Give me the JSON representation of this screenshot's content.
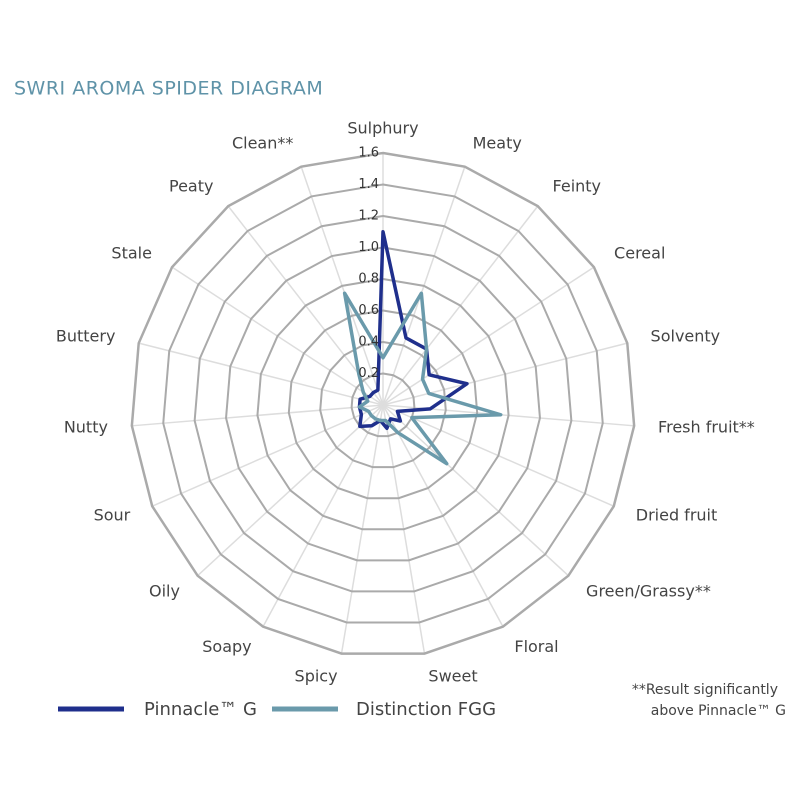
{
  "chart_data": {
    "type": "radar",
    "title": "SWRI AROMA SPIDER DIAGRAM",
    "categories": [
      "Sulphury",
      "Meaty",
      "Feinty",
      "Cereal",
      "Solventy",
      "Fresh fruit**",
      "Dried fruit",
      "Green/Grassy**",
      "Floral",
      "Sweet",
      "Spicy",
      "Soapy",
      "Oily",
      "Sour",
      "Nutty",
      "Buttery",
      "Stale",
      "Peaty",
      "Clean**"
    ],
    "series": [
      {
        "name": "Pinnacle™ G",
        "color": "#1f2f8c",
        "values": [
          1.1,
          0.45,
          0.45,
          0.35,
          0.55,
          0.3,
          0.1,
          0.15,
          0.1,
          0.15,
          0.1,
          0.15,
          0.2,
          0.15,
          0.15,
          0.15,
          0.1,
          0.1,
          0.1
        ]
      },
      {
        "name": "Distinction FGG",
        "color": "#6a9aab",
        "values": [
          0.3,
          0.75,
          0.45,
          0.3,
          0.3,
          0.75,
          0.2,
          0.55,
          0.2,
          0.1,
          0.1,
          0.1,
          0.1,
          0.1,
          0.15,
          0.1,
          0.15,
          0.25,
          0.75
        ]
      }
    ],
    "ylim": [
      0,
      1.6
    ],
    "yticks": [
      0.2,
      0.4,
      0.6,
      0.8,
      {
        "value": 1.0,
        "label": "1.0"
      },
      1.2,
      1.4,
      1.6
    ],
    "grid": true,
    "annotations": [
      "**Result significantly",
      "above Pinnacle™ G"
    ]
  }
}
